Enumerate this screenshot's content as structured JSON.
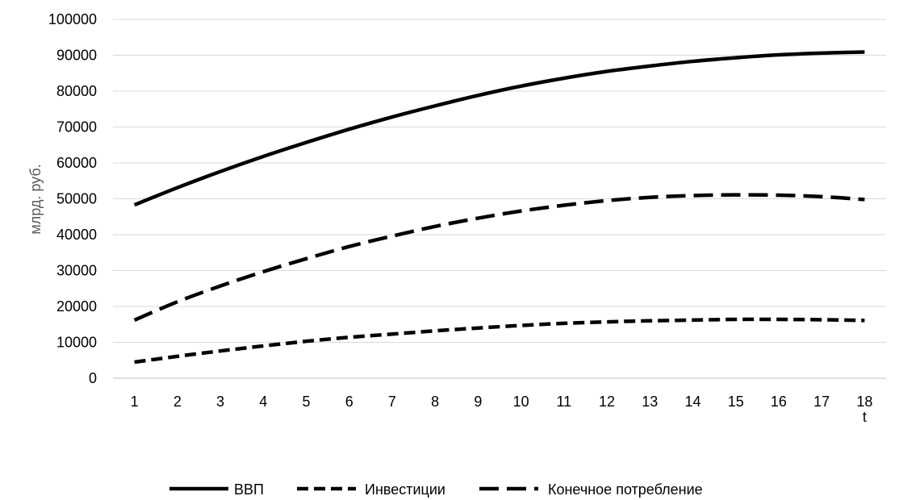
{
  "chart_data": {
    "type": "line",
    "title": "",
    "xlabel": "t",
    "ylabel": "млрд. руб.",
    "x": [
      1,
      2,
      3,
      4,
      5,
      6,
      7,
      8,
      9,
      10,
      11,
      12,
      13,
      14,
      15,
      16,
      17,
      18
    ],
    "xticks": [
      "1",
      "2",
      "3",
      "4",
      "5",
      "6",
      "7",
      "8",
      "9",
      "10",
      "11",
      "12",
      "13",
      "14",
      "15",
      "16",
      "17",
      "18"
    ],
    "ylim": [
      0,
      100000
    ],
    "yticks": [
      "0",
      "10000",
      "20000",
      "30000",
      "40000",
      "50000",
      "60000",
      "70000",
      "80000",
      "90000",
      "100000"
    ],
    "grid": true,
    "legend_position": "bottom",
    "series": [
      {
        "name": "ВВП",
        "style": "solid",
        "color": "#000000",
        "values": [
          48300,
          53100,
          57600,
          61800,
          65700,
          69400,
          72800,
          75900,
          78800,
          81400,
          83600,
          85500,
          87000,
          88300,
          89300,
          90100,
          90600,
          90900
        ]
      },
      {
        "name": "Инвестиции",
        "style": "dashed",
        "color": "#000000",
        "values": [
          4500,
          6100,
          7600,
          9000,
          10300,
          11400,
          12300,
          13200,
          14000,
          14700,
          15300,
          15700,
          16000,
          16200,
          16400,
          16400,
          16300,
          16100
        ]
      },
      {
        "name": "Конечное потребление",
        "style": "longdash",
        "color": "#000000",
        "values": [
          16200,
          21300,
          25700,
          29700,
          33300,
          36700,
          39600,
          42300,
          44600,
          46600,
          48200,
          49500,
          50400,
          50900,
          51100,
          51000,
          50600,
          49800
        ]
      }
    ]
  }
}
